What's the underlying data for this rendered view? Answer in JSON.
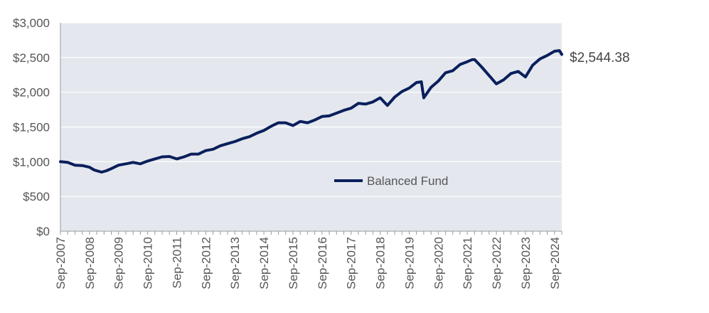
{
  "chart_data": {
    "type": "line",
    "x_start": "2007-09",
    "x_end": "2024-12",
    "x_ticks": [
      "Sep-2007",
      "Sep-2008",
      "Sep-2009",
      "Sep-2010",
      "Sep-2011",
      "Sep-2012",
      "Sep-2013",
      "Sep-2014",
      "Sep-2015",
      "Sep-2016",
      "Sep-2017",
      "Sep-2018",
      "Sep-2019",
      "Sep-2020",
      "Sep-2021",
      "Sep-2022",
      "Sep-2023",
      "Sep-2024"
    ],
    "y_ticks": [
      "$0",
      "$500",
      "$1,000",
      "$1,500",
      "$2,000",
      "$2,500",
      "$3,000"
    ],
    "ylim": [
      0,
      3000
    ],
    "grid": true,
    "legend_position": "center-right",
    "end_label": "$2,544.38",
    "colors": {
      "plot_bg": "#e4e8ee",
      "line": "#0a1f5c",
      "grid": "#ffffff"
    },
    "series": [
      {
        "name": "Balanced Fund",
        "points": [
          [
            "2007-09",
            1000
          ],
          [
            "2007-12",
            990
          ],
          [
            "2008-03",
            950
          ],
          [
            "2008-06",
            945
          ],
          [
            "2008-09",
            920
          ],
          [
            "2008-11",
            880
          ],
          [
            "2009-02",
            850
          ],
          [
            "2009-04",
            870
          ],
          [
            "2009-06",
            900
          ],
          [
            "2009-09",
            950
          ],
          [
            "2009-12",
            970
          ],
          [
            "2010-03",
            990
          ],
          [
            "2010-06",
            970
          ],
          [
            "2010-09",
            1010
          ],
          [
            "2010-12",
            1040
          ],
          [
            "2011-03",
            1070
          ],
          [
            "2011-06",
            1075
          ],
          [
            "2011-09",
            1040
          ],
          [
            "2011-12",
            1070
          ],
          [
            "2012-03",
            1110
          ],
          [
            "2012-06",
            1110
          ],
          [
            "2012-09",
            1160
          ],
          [
            "2012-12",
            1180
          ],
          [
            "2013-03",
            1230
          ],
          [
            "2013-06",
            1260
          ],
          [
            "2013-09",
            1290
          ],
          [
            "2013-12",
            1330
          ],
          [
            "2014-03",
            1360
          ],
          [
            "2014-06",
            1410
          ],
          [
            "2014-09",
            1450
          ],
          [
            "2014-12",
            1510
          ],
          [
            "2015-03",
            1560
          ],
          [
            "2015-06",
            1560
          ],
          [
            "2015-09",
            1520
          ],
          [
            "2015-12",
            1580
          ],
          [
            "2016-03",
            1560
          ],
          [
            "2016-06",
            1600
          ],
          [
            "2016-09",
            1650
          ],
          [
            "2016-12",
            1660
          ],
          [
            "2017-03",
            1700
          ],
          [
            "2017-06",
            1740
          ],
          [
            "2017-09",
            1770
          ],
          [
            "2017-12",
            1840
          ],
          [
            "2018-03",
            1830
          ],
          [
            "2018-06",
            1860
          ],
          [
            "2018-09",
            1920
          ],
          [
            "2018-12",
            1810
          ],
          [
            "2019-03",
            1930
          ],
          [
            "2019-06",
            2010
          ],
          [
            "2019-09",
            2060
          ],
          [
            "2019-12",
            2140
          ],
          [
            "2020-02",
            2150
          ],
          [
            "2020-03",
            1920
          ],
          [
            "2020-06",
            2070
          ],
          [
            "2020-09",
            2160
          ],
          [
            "2020-12",
            2280
          ],
          [
            "2021-03",
            2310
          ],
          [
            "2021-06",
            2400
          ],
          [
            "2021-09",
            2440
          ],
          [
            "2021-11",
            2470
          ],
          [
            "2021-12",
            2470
          ],
          [
            "2022-03",
            2360
          ],
          [
            "2022-06",
            2240
          ],
          [
            "2022-09",
            2120
          ],
          [
            "2022-12",
            2180
          ],
          [
            "2023-03",
            2270
          ],
          [
            "2023-06",
            2300
          ],
          [
            "2023-09",
            2220
          ],
          [
            "2023-12",
            2390
          ],
          [
            "2024-03",
            2480
          ],
          [
            "2024-06",
            2530
          ],
          [
            "2024-09",
            2590
          ],
          [
            "2024-11",
            2600
          ],
          [
            "2024-12",
            2544.38
          ]
        ]
      }
    ]
  }
}
